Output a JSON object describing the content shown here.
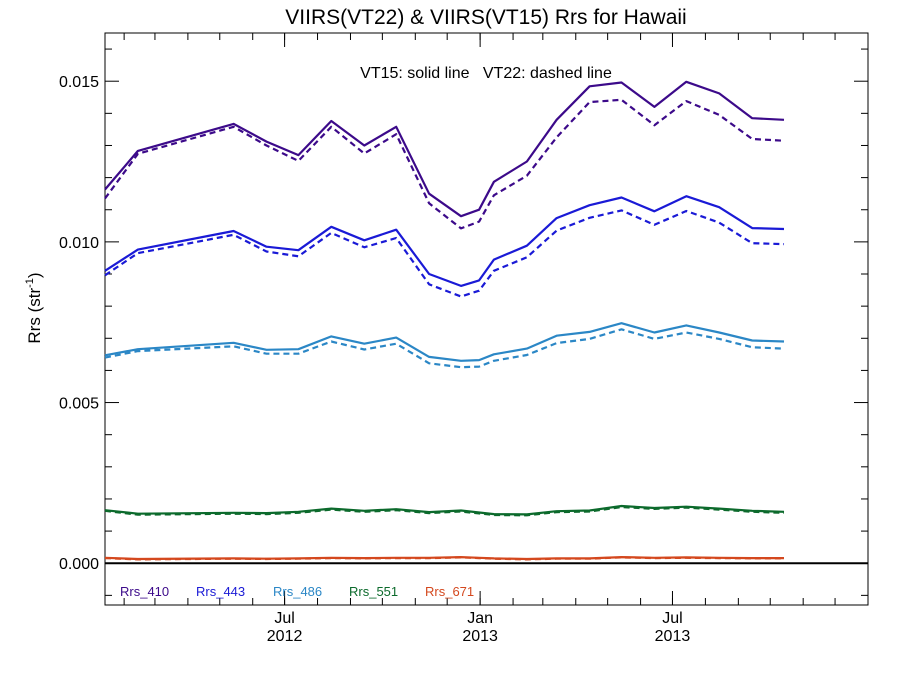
{
  "chart_data": {
    "type": "line",
    "title": "VIIRS(VT22) & VIIRS(VT15)  Rrs for Hawaii",
    "annotation": "VT15: solid line   VT22: dashed line",
    "ylabel": "Rrs (str",
    "ylabel_sup": "-1",
    "ylabel_tail": ")",
    "ylim": [
      -0.0013,
      0.0165
    ],
    "yticks": [
      0.0,
      0.005,
      0.01,
      0.015
    ],
    "ytick_labels": [
      "0.000",
      "0.005",
      "0.010",
      "0.015"
    ],
    "x_axis": {
      "start": "2012-01-14",
      "end": "2014-01-01"
    },
    "x_ticks": [
      {
        "date": "2012-07-01",
        "month": "Jul",
        "year": "2012"
      },
      {
        "date": "2013-01-01",
        "month": "Jan",
        "year": "2013"
      },
      {
        "date": "2013-07-01",
        "month": "Jul",
        "year": "2013"
      }
    ],
    "zero_line": true,
    "grid": false,
    "legend_position": "bottom-left",
    "dates": [
      "2012-01-14",
      "2012-02-14",
      "2012-05-14",
      "2012-06-14",
      "2012-07-14",
      "2012-08-14",
      "2012-09-14",
      "2012-10-14",
      "2012-11-14",
      "2012-12-14",
      "2012-12-31",
      "2013-01-14",
      "2013-02-14",
      "2013-03-14",
      "2013-04-14",
      "2013-05-14",
      "2013-06-14",
      "2013-07-14",
      "2013-08-14",
      "2013-09-14",
      "2013-10-14"
    ],
    "series": [
      {
        "name": "Rrs_410",
        "color": "#3c0a8a",
        "vt15": [
          0.01163,
          0.01283,
          0.01367,
          0.01312,
          0.0127,
          0.01376,
          0.013,
          0.01358,
          0.0115,
          0.0108,
          0.011,
          0.01187,
          0.0125,
          0.0138,
          0.01484,
          0.01496,
          0.0142,
          0.01498,
          0.01462,
          0.01385,
          0.0138
        ],
        "vt22": [
          0.01135,
          0.01274,
          0.01358,
          0.013,
          0.01252,
          0.01358,
          0.01275,
          0.01335,
          0.0112,
          0.01042,
          0.01063,
          0.01145,
          0.01206,
          0.01325,
          0.01435,
          0.01442,
          0.01363,
          0.01438,
          0.01395,
          0.0132,
          0.01315
        ]
      },
      {
        "name": "Rrs_443",
        "color": "#1a1ad6",
        "vt15": [
          0.0091,
          0.00976,
          0.01034,
          0.00985,
          0.00974,
          0.01047,
          0.01005,
          0.01038,
          0.009,
          0.00863,
          0.0088,
          0.00945,
          0.00988,
          0.01074,
          0.01114,
          0.01138,
          0.01095,
          0.01142,
          0.01108,
          0.01043,
          0.0104
        ],
        "vt22": [
          0.00896,
          0.00965,
          0.01022,
          0.0097,
          0.00955,
          0.01028,
          0.00983,
          0.01012,
          0.00868,
          0.0083,
          0.00848,
          0.0091,
          0.00952,
          0.01035,
          0.01075,
          0.01098,
          0.01053,
          0.01096,
          0.0106,
          0.00996,
          0.00993
        ]
      },
      {
        "name": "Rrs_486",
        "color": "#2b87c6",
        "vt15": [
          0.00647,
          0.00666,
          0.00686,
          0.00664,
          0.00666,
          0.00706,
          0.00683,
          0.00702,
          0.00642,
          0.0063,
          0.00632,
          0.0065,
          0.00668,
          0.00708,
          0.0072,
          0.00747,
          0.00718,
          0.0074,
          0.00718,
          0.00693,
          0.0069
        ],
        "vt22": [
          0.0064,
          0.0066,
          0.00675,
          0.00652,
          0.00652,
          0.0069,
          0.00665,
          0.00683,
          0.00622,
          0.0061,
          0.00612,
          0.0063,
          0.00648,
          0.00685,
          0.00698,
          0.00728,
          0.00698,
          0.00718,
          0.00698,
          0.00672,
          0.00668
        ]
      },
      {
        "name": "Rrs_551",
        "color": "#0c6a2c",
        "vt15": [
          0.00165,
          0.00154,
          0.00157,
          0.00156,
          0.0016,
          0.0017,
          0.00163,
          0.00168,
          0.00159,
          0.00164,
          0.00158,
          0.00153,
          0.00152,
          0.00162,
          0.00164,
          0.00178,
          0.00172,
          0.00176,
          0.0017,
          0.00163,
          0.0016
        ],
        "vt22": [
          0.00163,
          0.00151,
          0.00154,
          0.00153,
          0.00157,
          0.00167,
          0.0016,
          0.00165,
          0.00156,
          0.00161,
          0.00155,
          0.0015,
          0.00149,
          0.00159,
          0.00161,
          0.00175,
          0.00169,
          0.00173,
          0.00167,
          0.0016,
          0.00157
        ]
      },
      {
        "name": "Rrs_671",
        "color": "#d4481e",
        "vt15": [
          0.00017,
          0.00013,
          0.00015,
          0.00014,
          0.00015,
          0.00017,
          0.00016,
          0.00017,
          0.00017,
          0.00019,
          0.00017,
          0.00015,
          0.00013,
          0.00015,
          0.00015,
          0.00019,
          0.00017,
          0.00018,
          0.00017,
          0.00016,
          0.00016
        ],
        "vt22": [
          0.00016,
          0.00012,
          0.00014,
          0.00013,
          0.00014,
          0.00016,
          0.00015,
          0.00016,
          0.00016,
          0.00018,
          0.00016,
          0.00014,
          0.00012,
          0.00014,
          0.00014,
          0.00018,
          0.00016,
          0.00017,
          0.00016,
          0.00015,
          0.00015
        ]
      }
    ]
  }
}
